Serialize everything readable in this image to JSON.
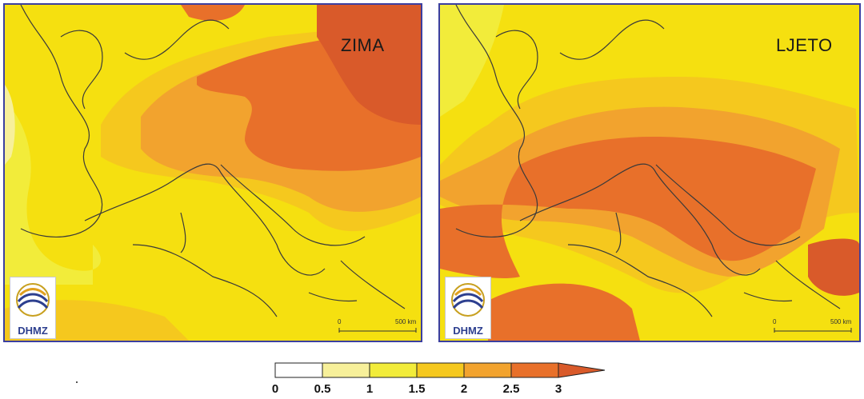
{
  "panels": [
    {
      "season": "ZIMA"
    },
    {
      "season": "LJETO"
    }
  ],
  "logo": {
    "text": "DHMZ"
  },
  "scale_bar": {
    "start": "0",
    "end": "500 km"
  },
  "legend": {
    "ticks": [
      "0",
      "0.5",
      "1",
      "1.5",
      "2",
      "2.5",
      "3"
    ],
    "colors": [
      "#ffffff",
      "#f7f09a",
      "#f2ec3a",
      "#f5c81e",
      "#f2a32e",
      "#e8702a",
      "#d95a2a"
    ]
  },
  "colors": {
    "border": "#3b3fa0",
    "level_1": "#f2ec3a",
    "level_1_5": "#f5c81e",
    "level_2": "#f2a32e",
    "level_2_5": "#e8702a",
    "level_3": "#d95a2a"
  }
}
